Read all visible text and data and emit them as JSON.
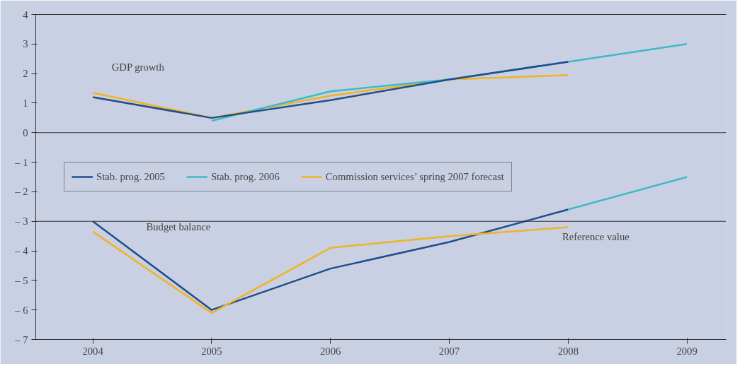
{
  "chart_data": {
    "type": "line",
    "x": [
      2004,
      2005,
      2006,
      2007,
      2008,
      2009
    ],
    "series": [
      {
        "name": "Stab. prog. 2005",
        "color": "#1f4e8c",
        "values": [
          1.2,
          0.5,
          1.1,
          1.8,
          2.4,
          null
        ]
      },
      {
        "name": "Stab. prog. 2006",
        "color": "#3dbbc4",
        "values": [
          null,
          0.4,
          1.4,
          1.8,
          2.4,
          3.0
        ]
      },
      {
        "name": "Commission services’ spring 2007 forecast",
        "color": "#f0b323",
        "values": [
          1.35,
          0.5,
          1.25,
          1.8,
          1.95,
          null
        ]
      },
      {
        "color": "#3dbbc4",
        "values": [
          null,
          null,
          null,
          null,
          -2.6,
          -1.5
        ]
      },
      {
        "color": "#f0b323",
        "values": [
          -3.35,
          -6.1,
          -3.9,
          -3.5,
          -3.2,
          null
        ]
      },
      {
        "color": "#1f4e8c",
        "values": [
          -3.0,
          -6.0,
          -4.6,
          -3.7,
          -2.6,
          null
        ]
      }
    ],
    "xlim": [
      2003.52,
      2009.33
    ],
    "xticks": [
      2004,
      2005,
      2006,
      2007,
      2008,
      2009
    ],
    "ylim": [
      -7,
      4
    ],
    "yticks": [
      4,
      3,
      2,
      1,
      0,
      {
        "value": -1,
        "label": "– 1"
      },
      {
        "value": -2,
        "label": "– 2"
      },
      {
        "value": -3,
        "label": "– 3"
      },
      {
        "value": -4,
        "label": "– 4"
      },
      {
        "value": -5,
        "label": "– 5"
      },
      {
        "value": -6,
        "label": "– 6"
      },
      {
        "value": -7,
        "label": "– 7"
      }
    ],
    "ref_lines": [
      {
        "axis": "y",
        "value": 0,
        "label": null,
        "color": "#333333"
      },
      {
        "axis": "y",
        "value": -3,
        "label": "Reference value",
        "color": "#333333"
      }
    ],
    "annotations": [
      "GDP growth",
      "Budget balance"
    ],
    "legend": "left",
    "grid": false,
    "marker": "none",
    "line_style": "solid"
  }
}
